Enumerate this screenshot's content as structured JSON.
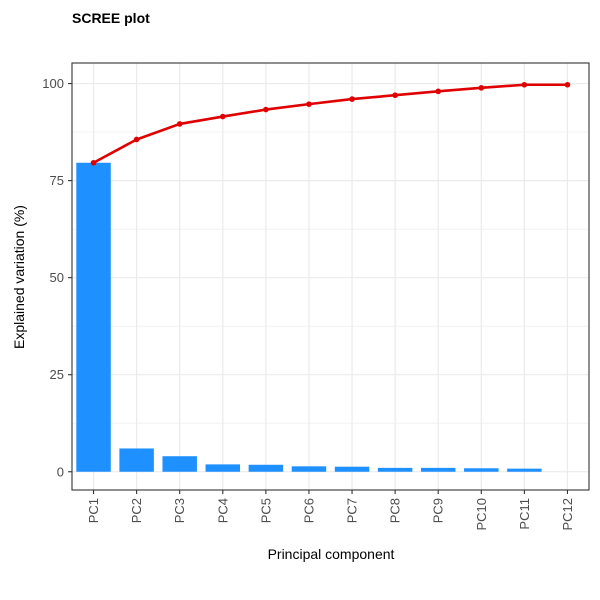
{
  "chart_data": {
    "type": "bar",
    "title": "SCREE plot",
    "xlabel": "Principal component",
    "ylabel": "Explained variation (%)",
    "categories": [
      "PC1",
      "PC2",
      "PC3",
      "PC4",
      "PC5",
      "PC6",
      "PC7",
      "PC8",
      "PC9",
      "PC10",
      "PC11",
      "PC12"
    ],
    "yticks": [
      "0",
      "25",
      "50",
      "75",
      "100"
    ],
    "ylim": [
      -4.7,
      105.3
    ],
    "grid": true,
    "series": [
      {
        "kind": "bar",
        "values": [
          79.6,
          6.0,
          4.0,
          1.9,
          1.8,
          1.4,
          1.3,
          1.0,
          1.0,
          0.9,
          0.8,
          0.0
        ]
      },
      {
        "kind": "line",
        "values": [
          79.6,
          85.6,
          89.6,
          91.5,
          93.3,
          94.7,
          96.0,
          97.0,
          98.0,
          98.9,
          99.7,
          99.7
        ]
      }
    ],
    "colors": {
      "bar": "#1E90FF",
      "line": "#E00000",
      "grid": "#ebebeb",
      "panel_border": "#333333"
    }
  }
}
